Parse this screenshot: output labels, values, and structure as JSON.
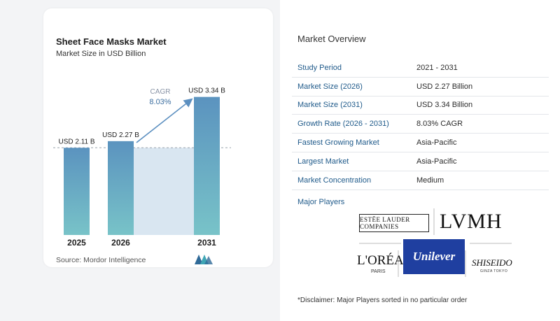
{
  "chart": {
    "title": "Sheet Face Masks Market",
    "subtitle": "Market Size in USD Billion",
    "source": "Source:  Mordor Intelligence",
    "cagr_label": "CAGR",
    "cagr_value": "8.03%"
  },
  "chart_data": {
    "type": "bar",
    "title": "Sheet Face Masks Market",
    "subtitle": "Market Size in USD Billion",
    "categories": [
      "2025",
      "2026",
      "2031"
    ],
    "values": [
      2.11,
      2.27,
      3.34
    ],
    "data_labels": [
      "USD 2.11 B",
      "USD 2.27 B",
      "USD 3.34 B"
    ],
    "annotation": {
      "label": "CAGR",
      "value": "8.03%"
    },
    "grid": false,
    "colors": {
      "bar": "#5b93bf",
      "bar_gradient_end": "#78c3c8",
      "band": "#d9e6f1",
      "arrow": "#5b8fc0"
    }
  },
  "overview": {
    "title": "Market Overview",
    "rows": [
      {
        "label": "Study Period",
        "value": "2021 - 2031"
      },
      {
        "label": "Market Size (2026)",
        "value": "USD 2.27 Billion"
      },
      {
        "label": "Market Size (2031)",
        "value": "USD 3.34 Billion"
      },
      {
        "label": "Growth Rate (2026 - 2031)",
        "value": "8.03% CAGR"
      },
      {
        "label": "Fastest Growing Market",
        "value": "Asia-Pacific"
      },
      {
        "label": "Largest Market",
        "value": "Asia-Pacific"
      },
      {
        "label": "Market Concentration",
        "value": "Medium"
      }
    ],
    "players_title": "Major Players",
    "players": [
      "ESTĒE LAUDER COMPANIES",
      "LVMH",
      "L'ORÉAL",
      "PARIS",
      "Unilever",
      "SHISEIDO",
      "GINZA TOKYO"
    ],
    "disclaimer": "*Disclaimer: Major Players sorted in no particular order"
  },
  "logo_name": "mordor-intelligence-logo"
}
